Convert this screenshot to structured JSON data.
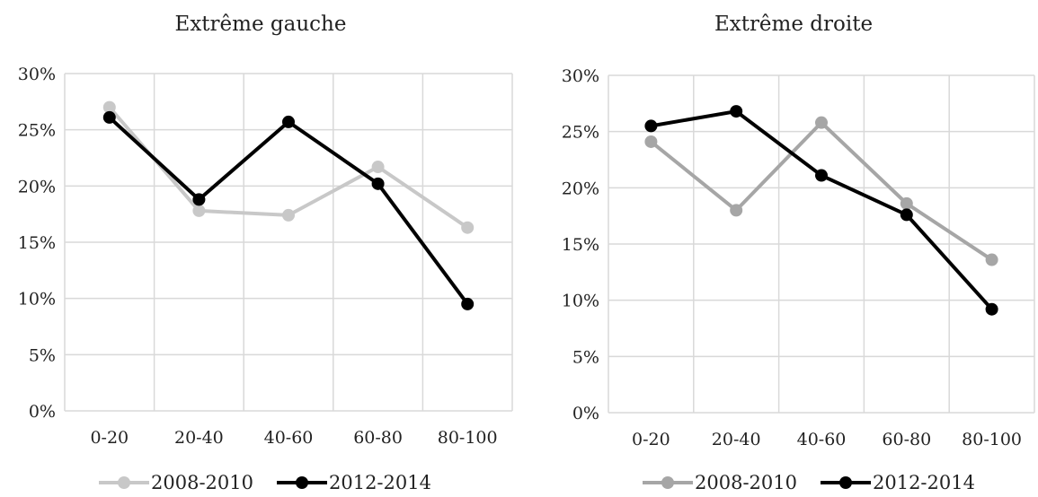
{
  "chart_data": [
    {
      "type": "line",
      "title": "Extrême gauche",
      "categories": [
        "0-20",
        "20-40",
        "40-60",
        "60-80",
        "80-100"
      ],
      "yticks": [
        "0%",
        "5%",
        "10%",
        "15%",
        "20%",
        "25%",
        "30%"
      ],
      "ylim": [
        0,
        30
      ],
      "grid": true,
      "legend_position": "bottom",
      "series": [
        {
          "name": "2008-2010",
          "color": "#c8c8c8",
          "values": [
            27.0,
            17.8,
            17.4,
            21.7,
            16.3
          ]
        },
        {
          "name": "2012-2014",
          "color": "#000000",
          "values": [
            26.1,
            18.8,
            25.7,
            20.2,
            9.5
          ]
        }
      ]
    },
    {
      "type": "line",
      "title": "Extrême droite",
      "categories": [
        "0-20",
        "20-40",
        "40-60",
        "60-80",
        "80-100"
      ],
      "yticks": [
        "0%",
        "5%",
        "10%",
        "15%",
        "20%",
        "25%",
        "30%"
      ],
      "ylim": [
        0,
        30
      ],
      "grid": true,
      "legend_position": "bottom",
      "series": [
        {
          "name": "2008-2010",
          "color": "#a6a6a6",
          "values": [
            24.1,
            18.0,
            25.8,
            18.6,
            13.6
          ]
        },
        {
          "name": "2012-2014",
          "color": "#000000",
          "values": [
            25.5,
            26.8,
            21.1,
            17.6,
            9.2
          ]
        }
      ]
    }
  ]
}
